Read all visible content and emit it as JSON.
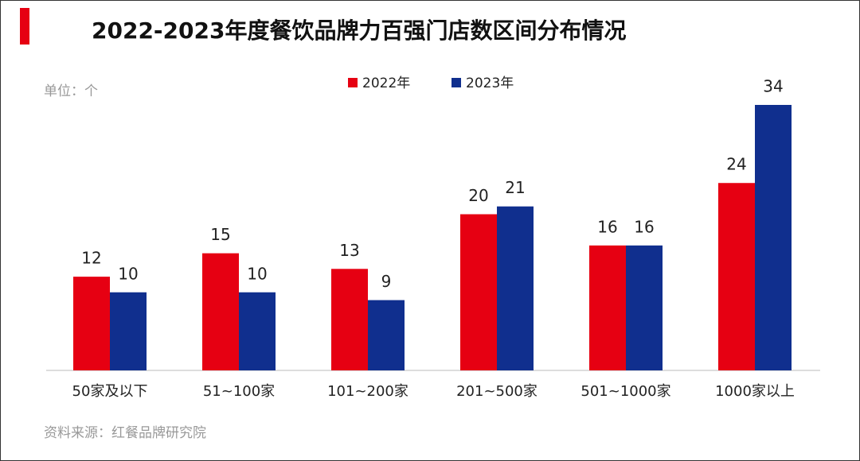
{
  "chart_data": {
    "type": "bar",
    "title": "2022-2023年度餐饮品牌力百强门店数区间分布情况",
    "unit": "单位：个",
    "source": "资料来源：红餐品牌研究院",
    "categories": [
      "50家及以下",
      "51~100家",
      "101~200家",
      "201~500家",
      "501~1000家",
      "1000家以上"
    ],
    "series": [
      {
        "name": "2022年",
        "color": "#e60012",
        "values": [
          12,
          15,
          13,
          20,
          16,
          24
        ]
      },
      {
        "name": "2023年",
        "color": "#102f8e",
        "values": [
          10,
          10,
          9,
          21,
          16,
          34
        ]
      }
    ],
    "legend": "top"
  }
}
